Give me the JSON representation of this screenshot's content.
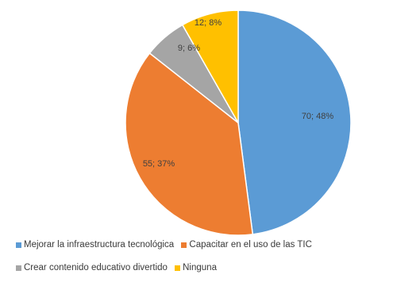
{
  "chart_data": {
    "type": "pie",
    "title": "",
    "slices": [
      {
        "label": "Mejorar la infraestructura tecnológica",
        "value": 70,
        "percent_label": "70; 48%",
        "color": "#5b9bd5"
      },
      {
        "label": "Capacitar en el uso de las TIC",
        "value": 55,
        "percent_label": "55; 37%",
        "color": "#ed7d31"
      },
      {
        "label": "Crear contenido educativo divertido",
        "value": 9,
        "percent_label": "9; 6%",
        "color": "#a5a5a5"
      },
      {
        "label": "Ninguna",
        "value": 12,
        "percent_label": "12; 8%",
        "color": "#ffc000"
      }
    ],
    "legend_position": "bottom"
  }
}
